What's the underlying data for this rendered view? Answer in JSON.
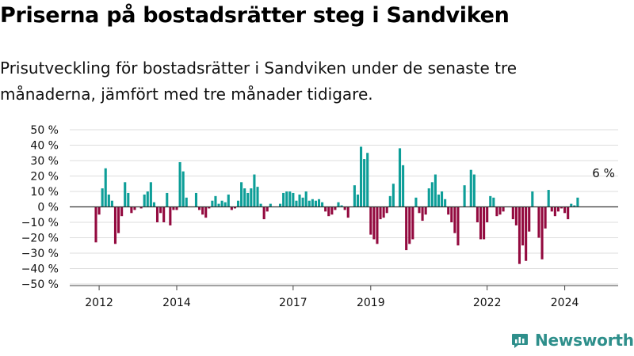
{
  "header": {
    "title": "Priserna på bostadsrätter steg i Sandviken",
    "subtitle": "Prisutveckling för bostadsrätter i Sandviken under de senaste tre månaderna, jämfört med tre månader tidigare."
  },
  "brand": {
    "name": "Newsworthy",
    "icon": "newsworthy-logo-icon",
    "color": "#2e8f8b"
  },
  "colors": {
    "positive": "#0d9e98",
    "negative": "#930a3f",
    "grid": "#dddddd",
    "zero_line": "#333333"
  },
  "chart_data": {
    "type": "bar",
    "x_unit": "month",
    "x_start": "2011-12",
    "ylim": [
      -50,
      50
    ],
    "yticks": [
      -50,
      -40,
      -30,
      -20,
      -10,
      0,
      10,
      20,
      30,
      40,
      50
    ],
    "ytick_labels": [
      "−50 %",
      "−40 %",
      "−30 %",
      "−20 %",
      "−10 %",
      "0 %",
      "10 %",
      "20 %",
      "30 %",
      "40 %",
      "50 %"
    ],
    "xticks": [
      "2012-01",
      "2014-01",
      "2017-01",
      "2019-01",
      "2022-01",
      "2024-01"
    ],
    "xtick_labels": [
      "2012",
      "2014",
      "2017",
      "2019",
      "2022",
      "2024"
    ],
    "grid": true,
    "annotation": {
      "text": "6 %",
      "x": "2025-01",
      "value": 6
    },
    "values": [
      -23,
      -5,
      12,
      25,
      8,
      4,
      -24,
      -17,
      -6,
      16,
      9,
      -4,
      -2,
      0,
      -1,
      8,
      10,
      16,
      3,
      -10,
      -4,
      -10,
      9,
      -12,
      -2,
      -2,
      29,
      23,
      6,
      0,
      0,
      9,
      -2,
      -5,
      -7,
      -1,
      4,
      7,
      2,
      4,
      3,
      8,
      -2,
      -1,
      4,
      16,
      12,
      9,
      12,
      21,
      13,
      2,
      -8,
      -3,
      2,
      0,
      0,
      2,
      9,
      10,
      10,
      9,
      4,
      8,
      6,
      10,
      4,
      5,
      4,
      5,
      3,
      -3,
      -6,
      -5,
      -2,
      3,
      1,
      -2,
      -7,
      0,
      14,
      8,
      39,
      31,
      35,
      -18,
      -21,
      -24,
      -8,
      -7,
      -4,
      7,
      15,
      0,
      38,
      27,
      -28,
      -24,
      -21,
      6,
      -4,
      -9,
      -5,
      12,
      16,
      21,
      8,
      10,
      5,
      -5,
      -10,
      -17,
      -25,
      0,
      14,
      0,
      24,
      21,
      -10,
      -21,
      -21,
      -10,
      7,
      6,
      -6,
      -5,
      -3,
      0,
      0,
      -8,
      -12,
      -37,
      -25,
      -35,
      -16,
      10,
      0,
      -20,
      -34,
      -14,
      11,
      -3,
      -6,
      -3,
      -1,
      -4,
      -8,
      2,
      1,
      6
    ]
  }
}
